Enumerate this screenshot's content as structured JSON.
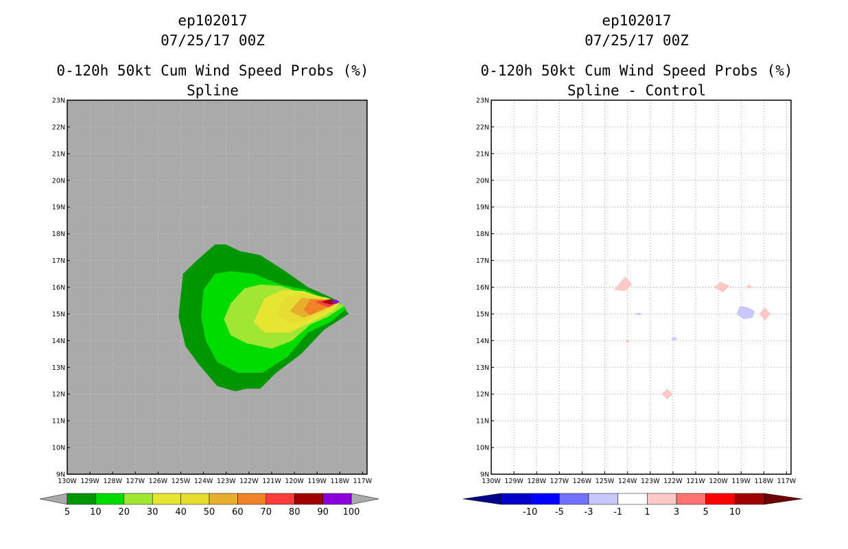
{
  "chart_data": [
    {
      "type": "heatmap",
      "title_line1": "ep102017",
      "title_line2": "07/25/17 00Z",
      "title_line3": "0-120h 50kt Cum Wind Speed Probs (%)",
      "subtitle": "Spline",
      "x_ticks": [
        "130W",
        "129W",
        "128W",
        "127W",
        "126W",
        "125W",
        "124W",
        "123W",
        "122W",
        "121W",
        "120W",
        "119W",
        "118W",
        "117W"
      ],
      "y_ticks": [
        "9N",
        "10N",
        "11N",
        "12N",
        "13N",
        "14N",
        "15N",
        "16N",
        "17N",
        "18N",
        "19N",
        "20N",
        "21N",
        "22N",
        "23N"
      ],
      "xlim": [
        -130,
        -116.8
      ],
      "ylim": [
        9,
        23
      ],
      "background": "#aaaaaa",
      "colorbar": {
        "labels": [
          "5",
          "10",
          "20",
          "30",
          "40",
          "50",
          "60",
          "70",
          "80",
          "90",
          "100"
        ],
        "colors": [
          "#009600",
          "#00dc00",
          "#a0e632",
          "#e6e632",
          "#e6dc32",
          "#e6af2d",
          "#f08228",
          "#fa3c3c",
          "#a00000",
          "#8c00dc"
        ]
      },
      "contours": [
        {
          "level": "5",
          "color": "#009600",
          "points": [
            [
              -125.1,
              14.9
            ],
            [
              -124.9,
              16.5
            ],
            [
              -124.3,
              17.0
            ],
            [
              -123.5,
              17.6
            ],
            [
              -123.0,
              17.6
            ],
            [
              -122.4,
              17.35
            ],
            [
              -121.5,
              17.2
            ],
            [
              -120.4,
              16.6
            ],
            [
              -119.4,
              16.0
            ],
            [
              -118.6,
              15.7
            ],
            [
              -118.1,
              15.5
            ],
            [
              -117.6,
              15.0
            ],
            [
              -118.7,
              14.4
            ],
            [
              -119.7,
              13.5
            ],
            [
              -120.8,
              12.8
            ],
            [
              -121.5,
              12.2
            ],
            [
              -122.1,
              12.2
            ],
            [
              -122.6,
              12.1
            ],
            [
              -123.4,
              12.3
            ],
            [
              -124.2,
              13.1
            ],
            [
              -124.8,
              13.8
            ]
          ]
        },
        {
          "level": "10",
          "color": "#00dc00",
          "points": [
            [
              -124.1,
              14.9
            ],
            [
              -124.0,
              15.9
            ],
            [
              -123.5,
              16.5
            ],
            [
              -122.8,
              16.6
            ],
            [
              -121.8,
              16.5
            ],
            [
              -120.6,
              16.1
            ],
            [
              -119.5,
              15.9
            ],
            [
              -118.7,
              15.6
            ],
            [
              -118.1,
              15.5
            ],
            [
              -117.7,
              15.2
            ],
            [
              -118.4,
              14.7
            ],
            [
              -119.4,
              14.3
            ],
            [
              -120.3,
              13.4
            ],
            [
              -121.4,
              12.8
            ],
            [
              -122.5,
              12.8
            ],
            [
              -123.4,
              13.2
            ],
            [
              -123.9,
              14.0
            ]
          ]
        },
        {
          "level": "20",
          "color": "#a0e632",
          "points": [
            [
              -123.1,
              14.8
            ],
            [
              -122.8,
              15.4
            ],
            [
              -122.2,
              15.95
            ],
            [
              -121.5,
              16.1
            ],
            [
              -120.6,
              16.05
            ],
            [
              -119.7,
              15.8
            ],
            [
              -118.5,
              15.6
            ],
            [
              -117.8,
              15.3
            ],
            [
              -118.5,
              14.9
            ],
            [
              -119.3,
              14.6
            ],
            [
              -120.1,
              14.0
            ],
            [
              -121.0,
              13.7
            ],
            [
              -122.1,
              13.9
            ],
            [
              -122.8,
              14.2
            ]
          ]
        },
        {
          "level": "30",
          "color": "#e6e632",
          "points": [
            [
              -121.8,
              14.7
            ],
            [
              -121.3,
              15.6
            ],
            [
              -120.5,
              15.9
            ],
            [
              -119.6,
              15.85
            ],
            [
              -118.9,
              15.65
            ],
            [
              -118.0,
              15.45
            ],
            [
              -118.3,
              15.1
            ],
            [
              -119.0,
              14.8
            ],
            [
              -120.2,
              14.3
            ],
            [
              -121.3,
              14.3
            ]
          ]
        },
        {
          "level": "40",
          "color": "#e6dc32",
          "points": [
            [
              -120.8,
              15.0
            ],
            [
              -120.4,
              15.6
            ],
            [
              -119.6,
              15.75
            ],
            [
              -118.9,
              15.6
            ],
            [
              -118.0,
              15.45
            ],
            [
              -118.5,
              15.15
            ],
            [
              -119.3,
              14.8
            ],
            [
              -120.2,
              14.65
            ]
          ]
        },
        {
          "level": "50",
          "color": "#e6af2d",
          "points": [
            [
              -120.2,
              15.1
            ],
            [
              -119.7,
              15.6
            ],
            [
              -118.8,
              15.55
            ],
            [
              -118.0,
              15.45
            ],
            [
              -118.7,
              15.15
            ],
            [
              -119.6,
              14.85
            ]
          ]
        },
        {
          "level": "60",
          "color": "#f08228",
          "points": [
            [
              -119.6,
              15.15
            ],
            [
              -119.3,
              15.55
            ],
            [
              -118.6,
              15.52
            ],
            [
              -118.0,
              15.45
            ],
            [
              -118.7,
              15.2
            ],
            [
              -119.3,
              14.95
            ]
          ]
        },
        {
          "level": "70",
          "color": "#fa3c3c",
          "points": [
            [
              -119.1,
              15.45
            ],
            [
              -118.5,
              15.55
            ],
            [
              -118.0,
              15.45
            ],
            [
              -118.5,
              15.25
            ]
          ]
        },
        {
          "level": "80",
          "color": "#a00000",
          "points": [
            [
              -118.8,
              15.45
            ],
            [
              -118.4,
              15.55
            ],
            [
              -118.0,
              15.45
            ],
            [
              -118.4,
              15.35
            ]
          ]
        },
        {
          "level": "90",
          "color": "#8c00dc",
          "points": [
            [
              -118.45,
              15.46
            ],
            [
              -118.15,
              15.53
            ],
            [
              -118.0,
              15.45
            ],
            [
              -118.15,
              15.38
            ]
          ]
        }
      ]
    },
    {
      "type": "heatmap",
      "title_line1": "ep102017",
      "title_line2": "07/25/17 00Z",
      "title_line3": "0-120h 50kt Cum Wind Speed Probs (%)",
      "subtitle": "Spline - Control",
      "x_ticks": [
        "130W",
        "129W",
        "128W",
        "127W",
        "126W",
        "125W",
        "124W",
        "123W",
        "122W",
        "121W",
        "120W",
        "119W",
        "118W",
        "117W"
      ],
      "y_ticks": [
        "9N",
        "10N",
        "11N",
        "12N",
        "13N",
        "14N",
        "15N",
        "16N",
        "17N",
        "18N",
        "19N",
        "20N",
        "21N",
        "22N",
        "23N"
      ],
      "xlim": [
        -130,
        -116.8
      ],
      "ylim": [
        9,
        23
      ],
      "background": "#ffffff",
      "grid": true,
      "colorbar": {
        "labels": [
          "-10",
          "-5",
          "-3",
          "-1",
          "1",
          "3",
          "5",
          "10"
        ],
        "colors": [
          "#0000c8",
          "#0000ff",
          "#7272ff",
          "#c8c8ff",
          "#ffffff",
          "#ffc8c8",
          "#ff7272",
          "#ff0000",
          "#a00000"
        ],
        "left_arrow_color": "#00008c",
        "right_arrow_color": "#6e0000"
      },
      "features": [
        {
          "name": "diff-patch-pos-1",
          "color": "#ffc8c8",
          "points": [
            [
              -124.6,
              15.9
            ],
            [
              -124.4,
              16.1
            ],
            [
              -124.1,
              16.4
            ],
            [
              -123.8,
              16.1
            ],
            [
              -124.1,
              15.85
            ]
          ]
        },
        {
          "name": "diff-patch-pos-2",
          "color": "#ffc8c8",
          "points": [
            [
              -120.2,
              16.0
            ],
            [
              -119.9,
              16.2
            ],
            [
              -119.5,
              16.05
            ],
            [
              -119.8,
              15.8
            ]
          ]
        },
        {
          "name": "diff-patch-pos-3",
          "color": "#ffc8c8",
          "points": [
            [
              -118.8,
              16.0
            ],
            [
              -118.65,
              16.1
            ],
            [
              -118.5,
              16.0
            ],
            [
              -118.65,
              15.95
            ]
          ]
        },
        {
          "name": "diff-patch-pos-4",
          "color": "#ffc8c8",
          "points": [
            [
              -118.2,
              15.0
            ],
            [
              -117.95,
              15.25
            ],
            [
              -117.7,
              15.0
            ],
            [
              -117.95,
              14.75
            ]
          ]
        },
        {
          "name": "diff-patch-pos-5",
          "color": "#ffc8c8",
          "points": [
            [
              -122.5,
              12.0
            ],
            [
              -122.25,
              12.2
            ],
            [
              -122.0,
              12.0
            ],
            [
              -122.25,
              11.8
            ]
          ]
        },
        {
          "name": "diff-patch-pos-6",
          "color": "#ffc8c8",
          "points": [
            [
              -124.1,
              13.98
            ],
            [
              -124.0,
              14.05
            ],
            [
              -123.9,
              13.98
            ],
            [
              -124.0,
              13.9
            ]
          ]
        },
        {
          "name": "diff-patch-neg-1",
          "color": "#c8c8ff",
          "points": [
            [
              -119.2,
              15.0
            ],
            [
              -119.05,
              15.3
            ],
            [
              -118.7,
              15.25
            ],
            [
              -118.4,
              15.1
            ],
            [
              -118.5,
              14.85
            ],
            [
              -118.9,
              14.8
            ]
          ]
        },
        {
          "name": "diff-patch-neg-2",
          "color": "#c8c8ff",
          "points": [
            [
              -123.7,
              15.0
            ],
            [
              -123.5,
              15.05
            ],
            [
              -123.3,
              15.0
            ],
            [
              -123.5,
              14.95
            ]
          ]
        },
        {
          "name": "diff-patch-neg-3",
          "color": "#c8c8ff",
          "points": [
            [
              -122.1,
              14.05
            ],
            [
              -121.95,
              14.15
            ],
            [
              -121.8,
              14.05
            ],
            [
              -121.95,
              14.0
            ]
          ]
        }
      ]
    }
  ]
}
